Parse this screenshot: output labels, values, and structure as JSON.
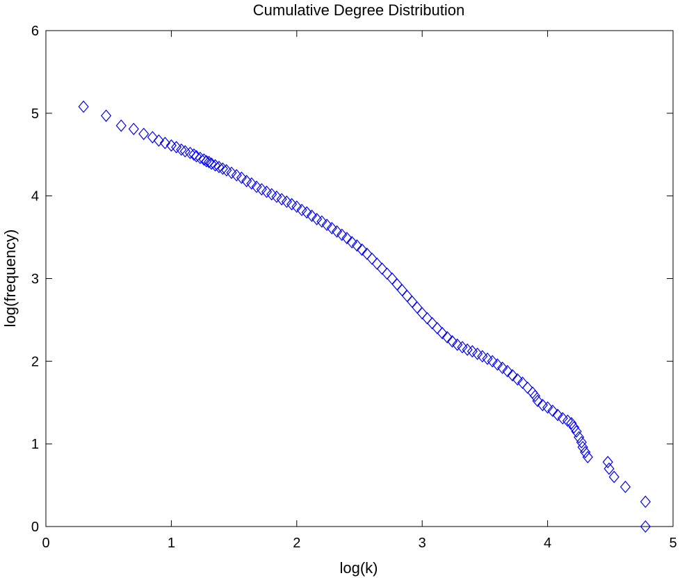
{
  "chart_data": {
    "type": "scatter",
    "title": "Cumulative Degree Distribution",
    "xlabel": "log(k)",
    "ylabel": "log(frequency)",
    "xlim": [
      0,
      5
    ],
    "ylim": [
      0,
      6
    ],
    "xticks": [
      0,
      1,
      2,
      3,
      4,
      5
    ],
    "yticks": [
      0,
      1,
      2,
      3,
      4,
      5,
      6
    ],
    "grid": false,
    "marker": "diamond",
    "marker_color": "#0000ff",
    "series": [
      {
        "points": [
          [
            0.3,
            5.08
          ],
          [
            0.48,
            4.97
          ],
          [
            0.6,
            4.85
          ],
          [
            0.7,
            4.81
          ],
          [
            0.78,
            4.75
          ],
          [
            0.85,
            4.71
          ],
          [
            0.9,
            4.67
          ],
          [
            0.95,
            4.64
          ],
          [
            1.0,
            4.61
          ],
          [
            1.04,
            4.59
          ],
          [
            1.08,
            4.56
          ],
          [
            1.11,
            4.54
          ],
          [
            1.15,
            4.52
          ],
          [
            1.18,
            4.5
          ],
          [
            1.2,
            4.48
          ],
          [
            1.23,
            4.46
          ],
          [
            1.26,
            4.44
          ],
          [
            1.28,
            4.42
          ],
          [
            1.3,
            4.41
          ],
          [
            1.32,
            4.39
          ],
          [
            1.35,
            4.37
          ],
          [
            1.38,
            4.35
          ],
          [
            1.41,
            4.33
          ],
          [
            1.44,
            4.31
          ],
          [
            1.48,
            4.28
          ],
          [
            1.52,
            4.25
          ],
          [
            1.56,
            4.22
          ],
          [
            1.6,
            4.18
          ],
          [
            1.64,
            4.15
          ],
          [
            1.68,
            4.11
          ],
          [
            1.72,
            4.08
          ],
          [
            1.76,
            4.05
          ],
          [
            1.8,
            4.02
          ],
          [
            1.84,
            3.99
          ],
          [
            1.88,
            3.96
          ],
          [
            1.92,
            3.93
          ],
          [
            1.96,
            3.9
          ],
          [
            2.0,
            3.87
          ],
          [
            2.04,
            3.83
          ],
          [
            2.08,
            3.8
          ],
          [
            2.12,
            3.76
          ],
          [
            2.16,
            3.72
          ],
          [
            2.2,
            3.69
          ],
          [
            2.24,
            3.65
          ],
          [
            2.28,
            3.61
          ],
          [
            2.32,
            3.57
          ],
          [
            2.36,
            3.53
          ],
          [
            2.4,
            3.49
          ],
          [
            2.44,
            3.44
          ],
          [
            2.48,
            3.4
          ],
          [
            2.52,
            3.35
          ],
          [
            2.56,
            3.3
          ],
          [
            2.6,
            3.24
          ],
          [
            2.64,
            3.18
          ],
          [
            2.68,
            3.12
          ],
          [
            2.72,
            3.06
          ],
          [
            2.76,
            3.0
          ],
          [
            2.8,
            2.93
          ],
          [
            2.84,
            2.86
          ],
          [
            2.88,
            2.79
          ],
          [
            2.92,
            2.72
          ],
          [
            2.96,
            2.65
          ],
          [
            3.0,
            2.58
          ],
          [
            3.04,
            2.52
          ],
          [
            3.08,
            2.46
          ],
          [
            3.12,
            2.4
          ],
          [
            3.16,
            2.34
          ],
          [
            3.2,
            2.29
          ],
          [
            3.24,
            2.24
          ],
          [
            3.28,
            2.2
          ],
          [
            3.32,
            2.17
          ],
          [
            3.36,
            2.14
          ],
          [
            3.4,
            2.12
          ],
          [
            3.44,
            2.09
          ],
          [
            3.48,
            2.06
          ],
          [
            3.52,
            2.03
          ],
          [
            3.56,
            2.0
          ],
          [
            3.6,
            1.96
          ],
          [
            3.64,
            1.92
          ],
          [
            3.68,
            1.88
          ],
          [
            3.72,
            1.83
          ],
          [
            3.76,
            1.78
          ],
          [
            3.8,
            1.74
          ],
          [
            3.84,
            1.68
          ],
          [
            3.88,
            1.62
          ],
          [
            3.9,
            1.58
          ],
          [
            3.92,
            1.52
          ],
          [
            3.96,
            1.47
          ],
          [
            4.0,
            1.44
          ],
          [
            4.04,
            1.4
          ],
          [
            4.08,
            1.35
          ],
          [
            4.12,
            1.31
          ],
          [
            4.16,
            1.28
          ],
          [
            4.19,
            1.25
          ],
          [
            4.21,
            1.2
          ],
          [
            4.23,
            1.15
          ],
          [
            4.25,
            1.08
          ],
          [
            4.27,
            1.02
          ],
          [
            4.28,
            0.96
          ],
          [
            4.3,
            0.9
          ],
          [
            4.32,
            0.84
          ],
          [
            4.48,
            0.78
          ],
          [
            4.49,
            0.7
          ],
          [
            4.53,
            0.6
          ],
          [
            4.62,
            0.48
          ],
          [
            4.78,
            0.3
          ],
          [
            4.78,
            0.0
          ]
        ]
      }
    ]
  }
}
